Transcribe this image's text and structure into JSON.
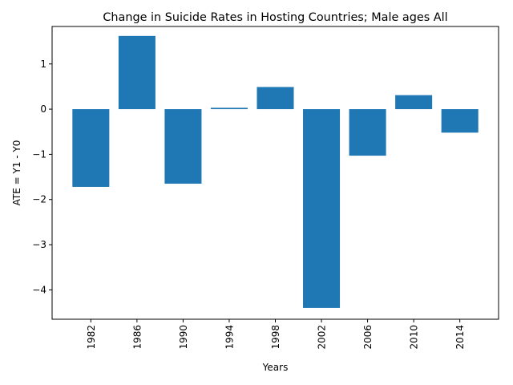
{
  "chart_data": {
    "type": "bar",
    "title": "Change in Suicide Rates in Hosting Countries; Male ages All",
    "xlabel": "Years",
    "ylabel": "ATE = Y1 - Y0",
    "categories": [
      "1982",
      "1986",
      "1990",
      "1994",
      "1998",
      "2002",
      "2006",
      "2010",
      "2014"
    ],
    "values": [
      -1.72,
      1.62,
      -1.65,
      0.03,
      0.49,
      -4.4,
      -1.03,
      0.31,
      -0.52
    ],
    "ylim": [
      -4.65,
      1.83
    ],
    "yticks": [
      1,
      0,
      -1,
      -2,
      -3,
      -4
    ],
    "ytick_labels": [
      "1",
      "0",
      "−1",
      "−2",
      "−3",
      "−4"
    ],
    "bar_color": "#1f77b4",
    "grid": false,
    "legend": "none"
  }
}
